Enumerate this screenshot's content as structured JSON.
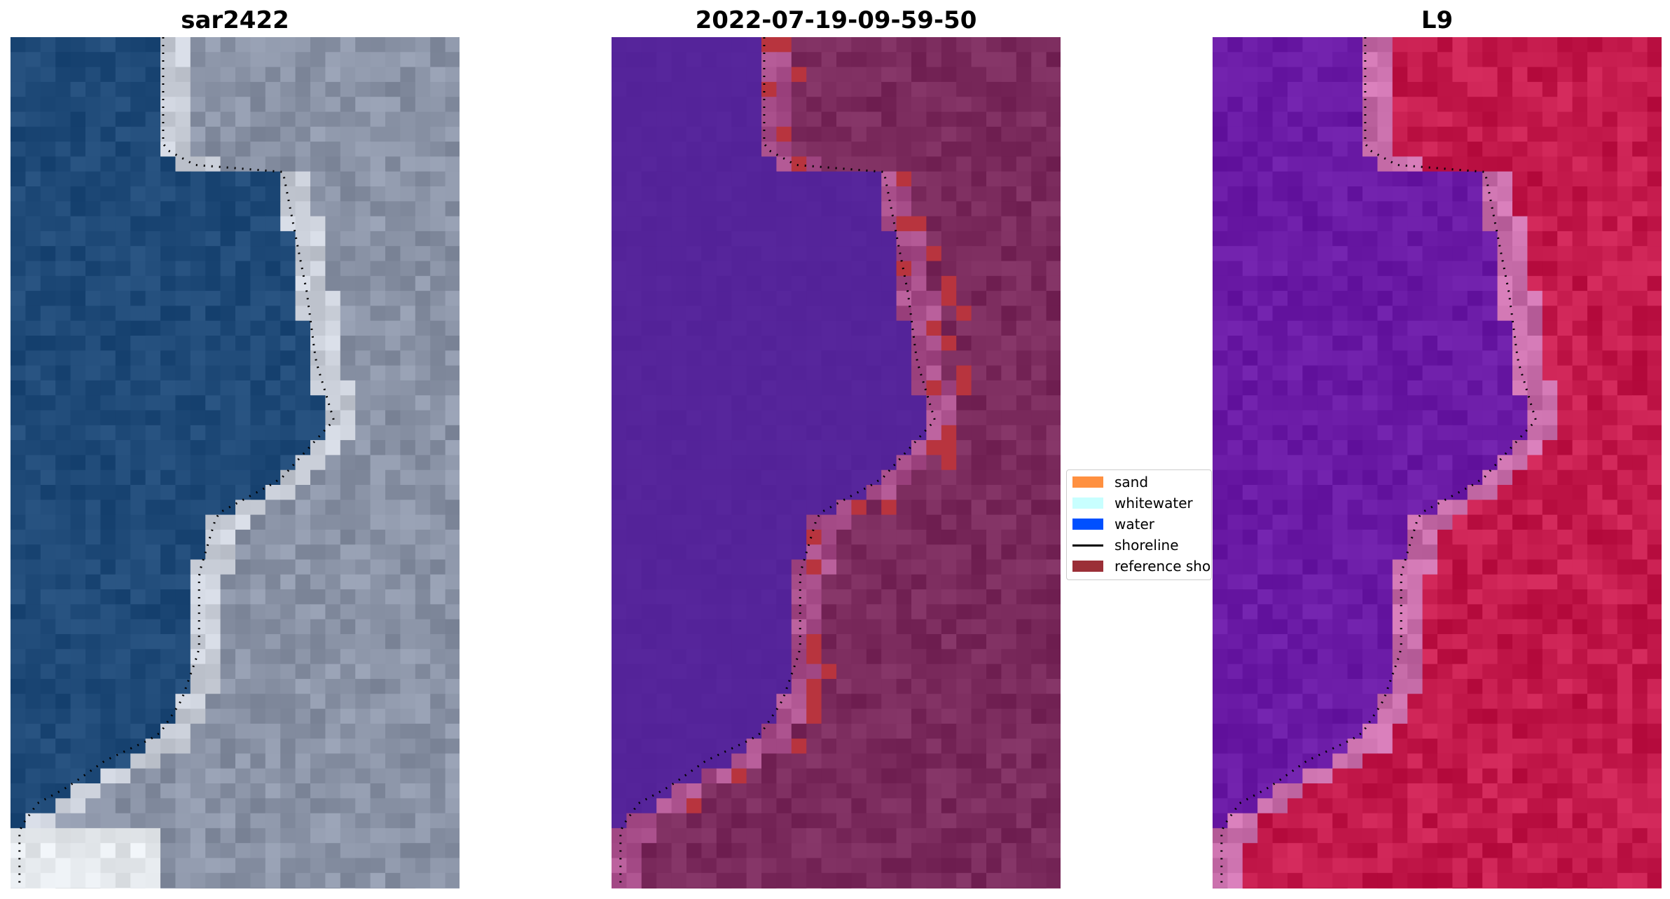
{
  "panels": [
    {
      "title": "sar2422",
      "palette": "rgb"
    },
    {
      "title": "2022-07-19-09-59-50",
      "palette": "class"
    },
    {
      "title": "L9",
      "palette": "index"
    }
  ],
  "legend": {
    "items": [
      {
        "label": "sand",
        "type": "patch",
        "color": "#ff9040"
      },
      {
        "label": "whitewater",
        "type": "patch",
        "color": "#c8ffff"
      },
      {
        "label": "water",
        "type": "patch",
        "color": "#0050ff"
      },
      {
        "label": "shoreline",
        "type": "line",
        "color": "#000000"
      },
      {
        "label": "reference shoreline",
        "type": "patch",
        "color": "#9b2f37"
      }
    ]
  },
  "colors": {
    "rgb_water": "#1f4a78",
    "rgb_land": "#8a93a6",
    "class_water": "#55249a",
    "class_land": "#7a2a5c",
    "class_highlight": "#b8343e",
    "index_water": "#6a1aa5",
    "index_land": "#c41a4c",
    "shoreline_dots": "#000000"
  }
}
